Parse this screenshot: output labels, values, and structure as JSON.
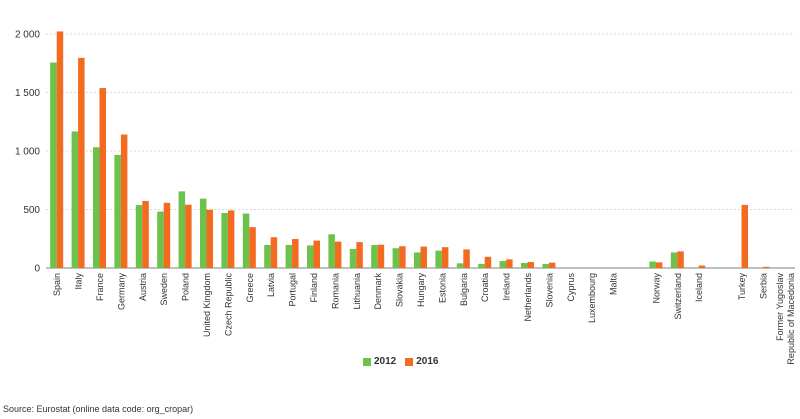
{
  "chart_data": {
    "type": "bar",
    "categories": [
      "Spain",
      "Italy",
      "France",
      "Germany",
      "Austria",
      "Sweden",
      "Poland",
      "United Kingdom",
      "Czech Republic",
      "Greece",
      "Latvia",
      "Portugal",
      "Finland",
      "Romania",
      "Lithuania",
      "Denmark",
      "Slovakia",
      "Hungary",
      "Estonia",
      "Bulgaria",
      "Croatia",
      "Ireland",
      "Netherlands",
      "Slovenia",
      "Cyprus",
      "Luxembourg",
      "Malta",
      "",
      "Norway",
      "Switzerland",
      "Iceland",
      "",
      "Turkey",
      "Serbia",
      "Former Yugoslav Republic of Macedonia"
    ],
    "series": [
      {
        "name": "2012",
        "color": "#6cc24a",
        "values": [
          1756,
          1167,
          1032,
          967,
          538,
          482,
          655,
          593,
          470,
          466,
          197,
          197,
          193,
          288,
          163,
          197,
          169,
          133,
          148,
          40,
          35,
          60,
          43,
          34,
          0,
          0,
          0,
          null,
          55,
          133,
          0,
          null,
          0,
          0,
          0
        ]
      },
      {
        "name": "2016",
        "color": "#f26b21",
        "values": [
          2022,
          1796,
          1538,
          1141,
          573,
          557,
          541,
          498,
          492,
          349,
          263,
          248,
          234,
          225,
          221,
          199,
          186,
          183,
          178,
          159,
          96,
          74,
          51,
          46,
          0,
          0,
          0,
          null,
          48,
          142,
          21,
          null,
          539,
          10,
          0
        ]
      }
    ],
    "yticks": [
      0,
      500,
      1000,
      1500,
      2000
    ],
    "ytick_labels": [
      "0",
      "500",
      "1 000",
      "1 500",
      "2 000"
    ],
    "ylim": [
      0,
      2000
    ],
    "grid": true,
    "legend": "bottom"
  },
  "legend": {
    "items": [
      {
        "label": "2012",
        "color": "#6cc24a"
      },
      {
        "label": "2016",
        "color": "#f26b21"
      }
    ]
  },
  "source_note": "Source: Eurostat (online data code: org_cropar)"
}
